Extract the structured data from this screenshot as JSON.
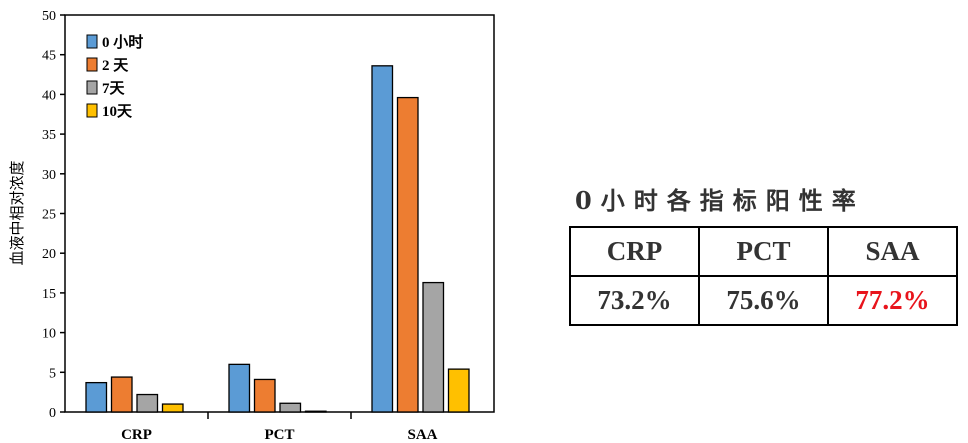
{
  "chart_data": {
    "type": "bar",
    "ylabel": "血液中相对浓度",
    "ylim": [
      0,
      50
    ],
    "yticks": [
      0,
      5,
      10,
      15,
      20,
      25,
      30,
      35,
      40,
      45,
      50
    ],
    "categories": [
      "CRP",
      "PCT",
      "SAA"
    ],
    "legend_position": "top-left",
    "series": [
      {
        "name": "0 小时",
        "color": "#5b9bd5",
        "values": [
          3.7,
          6.0,
          43.6
        ]
      },
      {
        "name": "2 天",
        "color": "#ed7d31",
        "values": [
          4.4,
          4.1,
          39.6
        ]
      },
      {
        "name": "7天",
        "color": "#a5a5a5",
        "values": [
          2.2,
          1.1,
          16.3
        ]
      },
      {
        "name": "10天",
        "color": "#ffc000",
        "values": [
          1.0,
          0.1,
          5.4
        ]
      }
    ]
  },
  "rate_table": {
    "title": "0小时各指标阳性率",
    "headers": [
      "CRP",
      "PCT",
      "SAA"
    ],
    "values": [
      "73.2%",
      "75.6%",
      "77.2%"
    ],
    "highlight_color": "#e8141c"
  }
}
